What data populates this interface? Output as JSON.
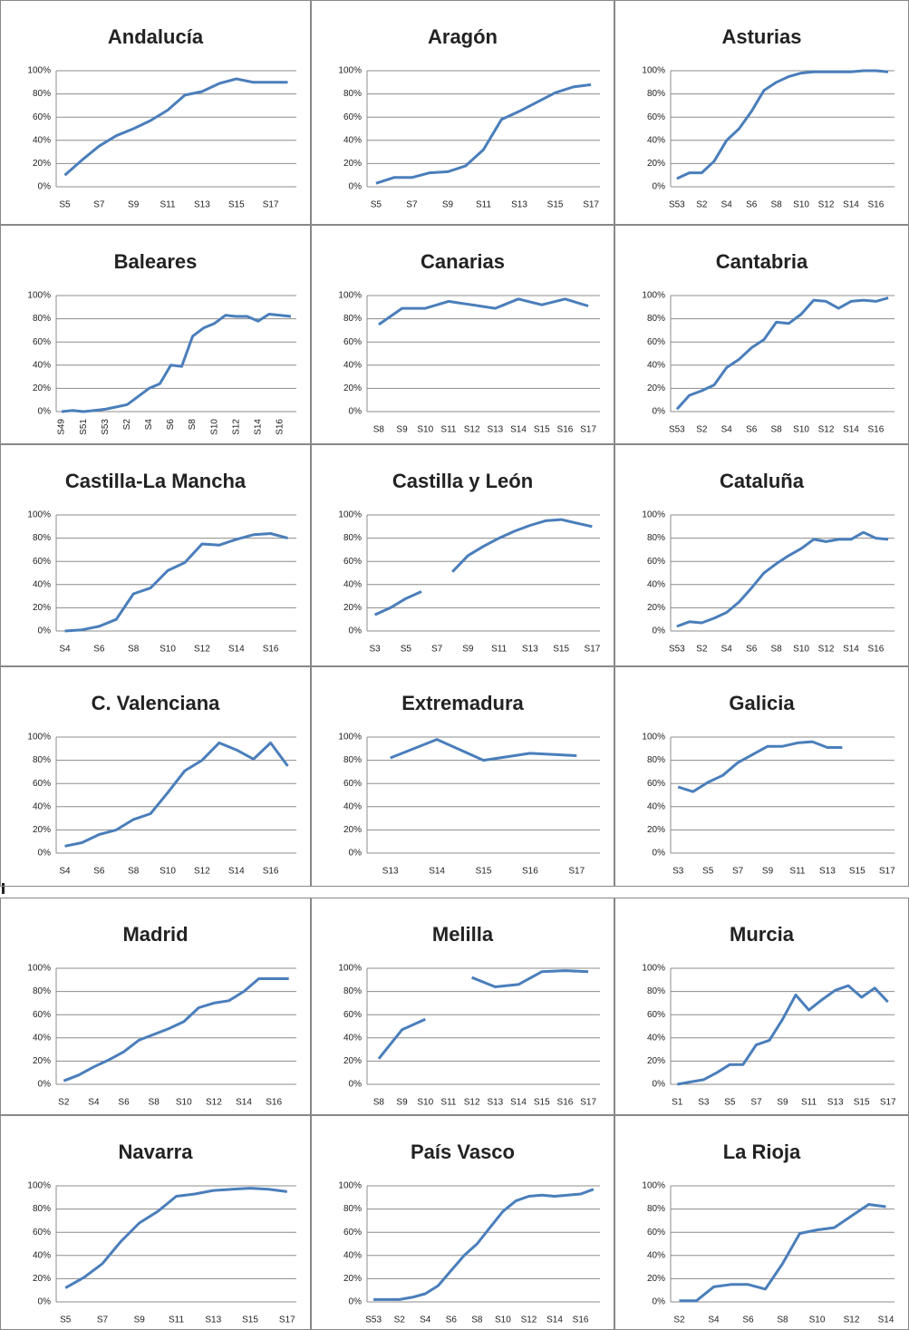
{
  "chart_data": [
    {
      "type": "line",
      "title": "Andalucía",
      "categories": [
        "S5",
        null,
        "S7",
        null,
        "S9",
        null,
        "S11",
        null,
        "S13",
        null,
        "S15",
        null,
        "S17",
        null
      ],
      "values": [
        10,
        23,
        35,
        44,
        50,
        57,
        66,
        79,
        82,
        89,
        93,
        90,
        90,
        90
      ],
      "color": "#4a7ebb",
      "ylim": [
        0,
        100
      ],
      "yticks": [
        {
          "value": 0,
          "label": "0%"
        },
        {
          "value": 20,
          "label": "20%"
        },
        {
          "value": 40,
          "label": "40%"
        },
        {
          "value": 60,
          "label": "60%"
        },
        {
          "value": 80,
          "label": "80%"
        },
        {
          "value": 100,
          "label": "100%"
        }
      ],
      "grid": true
    },
    {
      "type": "line",
      "title": "Aragón",
      "categories": [
        "S5",
        null,
        "S7",
        null,
        "S9",
        null,
        "S11",
        null,
        "S13",
        null,
        "S15",
        null,
        "S17"
      ],
      "values": [
        3,
        8,
        8,
        12,
        13,
        18,
        32,
        58,
        65,
        73,
        81,
        86,
        88
      ],
      "color": "#4a7ebb",
      "ylim": [
        0,
        100
      ],
      "yticks": [
        {
          "value": 0,
          "label": "0%"
        },
        {
          "value": 20,
          "label": "20%"
        },
        {
          "value": 40,
          "label": "40%"
        },
        {
          "value": 60,
          "label": "60%"
        },
        {
          "value": 80,
          "label": "80%"
        },
        {
          "value": 100,
          "label": "100%"
        }
      ],
      "grid": true
    },
    {
      "type": "line",
      "title": "Asturias",
      "categories": [
        "S53",
        null,
        "S2",
        null,
        "S4",
        null,
        "S6",
        null,
        "S8",
        null,
        "S10",
        null,
        "S12",
        null,
        "S14",
        null,
        "S16",
        null
      ],
      "values": [
        7,
        12,
        12,
        22,
        40,
        50,
        65,
        83,
        90,
        95,
        98,
        99,
        99,
        99,
        99,
        100,
        100,
        99
      ],
      "color": "#4a7ebb",
      "ylim": [
        0,
        100
      ],
      "yticks": [
        {
          "value": 0,
          "label": "0%"
        },
        {
          "value": 20,
          "label": "20%"
        },
        {
          "value": 40,
          "label": "40%"
        },
        {
          "value": 60,
          "label": "60%"
        },
        {
          "value": 80,
          "label": "80%"
        },
        {
          "value": 100,
          "label": "100%"
        }
      ],
      "grid": true
    },
    {
      "type": "line",
      "title": "Baleares",
      "categories": [
        "S49",
        null,
        "S51",
        null,
        "S53",
        null,
        "S2",
        null,
        "S4",
        null,
        "S6",
        null,
        "S8",
        null,
        "S10",
        null,
        "S12",
        null,
        "S14",
        null,
        "S16",
        null
      ],
      "values": [
        0,
        1,
        0,
        1,
        2,
        4,
        6,
        13,
        20,
        24,
        40,
        39,
        65,
        72,
        76,
        83,
        82,
        82,
        78,
        84,
        83,
        82
      ],
      "color": "#4a7ebb",
      "ylim": [
        0,
        100
      ],
      "yticks": [
        {
          "value": 0,
          "label": "0%"
        },
        {
          "value": 20,
          "label": "20%"
        },
        {
          "value": 40,
          "label": "40%"
        },
        {
          "value": 60,
          "label": "60%"
        },
        {
          "value": 80,
          "label": "80%"
        },
        {
          "value": 100,
          "label": "100%"
        }
      ],
      "grid": true,
      "xlabel_rotation": -90
    },
    {
      "type": "line",
      "title": "Canarias",
      "categories": [
        "S8",
        "S9",
        "S10",
        "S11",
        "S12",
        "S13",
        "S14",
        "S15",
        "S16",
        "S17"
      ],
      "values": [
        75,
        89,
        89,
        95,
        92,
        89,
        97,
        92,
        97,
        91
      ],
      "color": "#4a7ebb",
      "ylim": [
        0,
        100
      ],
      "yticks": [
        {
          "value": 0,
          "label": "0%"
        },
        {
          "value": 20,
          "label": "20%"
        },
        {
          "value": 40,
          "label": "40%"
        },
        {
          "value": 60,
          "label": "60%"
        },
        {
          "value": 80,
          "label": "80%"
        },
        {
          "value": 100,
          "label": "100%"
        }
      ],
      "grid": true
    },
    {
      "type": "line",
      "title": "Cantabria",
      "categories": [
        "S53",
        null,
        "S2",
        null,
        "S4",
        null,
        "S6",
        null,
        "S8",
        null,
        "S10",
        null,
        "S12",
        null,
        "S14",
        null,
        "S16",
        null
      ],
      "values": [
        2,
        14,
        18,
        23,
        38,
        45,
        55,
        62,
        77,
        76,
        84,
        96,
        95,
        89,
        95,
        96,
        95,
        98
      ],
      "color": "#4a7ebb",
      "ylim": [
        0,
        100
      ],
      "yticks": [
        {
          "value": 0,
          "label": "0%"
        },
        {
          "value": 20,
          "label": "20%"
        },
        {
          "value": 40,
          "label": "40%"
        },
        {
          "value": 60,
          "label": "60%"
        },
        {
          "value": 80,
          "label": "80%"
        },
        {
          "value": 100,
          "label": "100%"
        }
      ],
      "grid": true
    },
    {
      "type": "line",
      "title": "Castilla-La Mancha",
      "categories": [
        "S4",
        null,
        "S6",
        null,
        "S8",
        null,
        "S10",
        null,
        "S12",
        null,
        "S14",
        null,
        "S16",
        null
      ],
      "values": [
        0,
        1,
        4,
        10,
        32,
        37,
        52,
        59,
        75,
        74,
        79,
        83,
        84,
        80
      ],
      "color": "#4a7ebb",
      "ylim": [
        0,
        100
      ],
      "yticks": [
        {
          "value": 0,
          "label": "0%"
        },
        {
          "value": 20,
          "label": "20%"
        },
        {
          "value": 40,
          "label": "40%"
        },
        {
          "value": 60,
          "label": "60%"
        },
        {
          "value": 80,
          "label": "80%"
        },
        {
          "value": 100,
          "label": "100%"
        }
      ],
      "grid": true
    },
    {
      "type": "line",
      "title": "Castilla y León",
      "categories": [
        "S3",
        null,
        "S5",
        null,
        "S7",
        null,
        "S9",
        null,
        "S11",
        null,
        "S13",
        null,
        "S15",
        null,
        "S17"
      ],
      "values": [
        14,
        20,
        28,
        34,
        null,
        51,
        65,
        73,
        80,
        86,
        91,
        95,
        96,
        93,
        90
      ],
      "color": "#4a7ebb",
      "ylim": [
        0,
        100
      ],
      "yticks": [
        {
          "value": 0,
          "label": "0%"
        },
        {
          "value": 20,
          "label": "20%"
        },
        {
          "value": 40,
          "label": "40%"
        },
        {
          "value": 60,
          "label": "60%"
        },
        {
          "value": 80,
          "label": "80%"
        },
        {
          "value": 100,
          "label": "100%"
        }
      ],
      "grid": true
    },
    {
      "type": "line",
      "title": "Cataluña",
      "categories": [
        "S53",
        null,
        "S2",
        null,
        "S4",
        null,
        "S6",
        null,
        "S8",
        null,
        "S10",
        null,
        "S12",
        null,
        "S14",
        null,
        "S16",
        null
      ],
      "values": [
        4,
        8,
        7,
        11,
        16,
        25,
        37,
        50,
        58,
        65,
        71,
        79,
        77,
        79,
        79,
        85,
        80,
        79
      ],
      "color": "#4a7ebb",
      "ylim": [
        0,
        100
      ],
      "yticks": [
        {
          "value": 0,
          "label": "0%"
        },
        {
          "value": 20,
          "label": "20%"
        },
        {
          "value": 40,
          "label": "40%"
        },
        {
          "value": 60,
          "label": "60%"
        },
        {
          "value": 80,
          "label": "80%"
        },
        {
          "value": 100,
          "label": "100%"
        }
      ],
      "grid": true
    },
    {
      "type": "line",
      "title": "C. Valenciana",
      "categories": [
        "S4",
        null,
        "S6",
        null,
        "S8",
        null,
        "S10",
        null,
        "S12",
        null,
        "S14",
        null,
        "S16",
        null
      ],
      "values": [
        6,
        9,
        16,
        20,
        29,
        34,
        52,
        71,
        80,
        95,
        89,
        81,
        95,
        75
      ],
      "color": "#4a7ebb",
      "ylim": [
        0,
        100
      ],
      "yticks": [
        {
          "value": 0,
          "label": "0%"
        },
        {
          "value": 20,
          "label": "20%"
        },
        {
          "value": 40,
          "label": "40%"
        },
        {
          "value": 60,
          "label": "60%"
        },
        {
          "value": 80,
          "label": "80%"
        },
        {
          "value": 100,
          "label": "100%"
        }
      ],
      "grid": true
    },
    {
      "type": "line",
      "title": "Extremadura",
      "categories": [
        "S13",
        "S14",
        "S15",
        "S16",
        "S17"
      ],
      "values": [
        82,
        98,
        80,
        86,
        84
      ],
      "color": "#4a7ebb",
      "ylim": [
        0,
        100
      ],
      "yticks": [
        {
          "value": 0,
          "label": "0%"
        },
        {
          "value": 20,
          "label": "20%"
        },
        {
          "value": 40,
          "label": "40%"
        },
        {
          "value": 60,
          "label": "60%"
        },
        {
          "value": 80,
          "label": "80%"
        },
        {
          "value": 100,
          "label": "100%"
        }
      ],
      "grid": true
    },
    {
      "type": "line",
      "title": "Galicia",
      "categories": [
        "S3",
        null,
        "S5",
        null,
        "S7",
        null,
        "S9",
        null,
        "S11",
        null,
        "S13",
        null,
        "S15",
        null,
        "S17"
      ],
      "values": [
        57,
        53,
        61,
        67,
        78,
        85,
        92,
        92,
        95,
        96,
        91,
        91,
        null,
        null,
        null
      ],
      "color": "#4a7ebb",
      "ylim": [
        0,
        100
      ],
      "yticks": [
        {
          "value": 0,
          "label": "0%"
        },
        {
          "value": 20,
          "label": "20%"
        },
        {
          "value": 40,
          "label": "40%"
        },
        {
          "value": 60,
          "label": "60%"
        },
        {
          "value": 80,
          "label": "80%"
        },
        {
          "value": 100,
          "label": "100%"
        }
      ],
      "grid": true
    },
    {
      "type": "line",
      "title": "Madrid",
      "categories": [
        "S2",
        null,
        "S4",
        null,
        "S6",
        null,
        "S8",
        null,
        "S10",
        null,
        "S12",
        null,
        "S14",
        null,
        "S16",
        null
      ],
      "values": [
        3,
        8,
        15,
        21,
        28,
        38,
        43,
        48,
        54,
        66,
        70,
        72,
        80,
        91,
        91,
        91
      ],
      "color": "#4a7ebb",
      "ylim": [
        0,
        100
      ],
      "yticks": [
        {
          "value": 0,
          "label": "0%"
        },
        {
          "value": 20,
          "label": "20%"
        },
        {
          "value": 40,
          "label": "40%"
        },
        {
          "value": 60,
          "label": "60%"
        },
        {
          "value": 80,
          "label": "80%"
        },
        {
          "value": 100,
          "label": "100%"
        }
      ],
      "grid": true
    },
    {
      "type": "line",
      "title": "Melilla",
      "categories": [
        "S8",
        "S9",
        "S10",
        "S11",
        "S12",
        "S13",
        "S14",
        "S15",
        "S16",
        "S17"
      ],
      "values": [
        22,
        47,
        56,
        null,
        92,
        84,
        86,
        97,
        98,
        97
      ],
      "color": "#4a7ebb",
      "ylim": [
        0,
        100
      ],
      "yticks": [
        {
          "value": 0,
          "label": "0%"
        },
        {
          "value": 20,
          "label": "20%"
        },
        {
          "value": 40,
          "label": "40%"
        },
        {
          "value": 60,
          "label": "60%"
        },
        {
          "value": 80,
          "label": "80%"
        },
        {
          "value": 100,
          "label": "100%"
        }
      ],
      "grid": true
    },
    {
      "type": "line",
      "title": "Murcia",
      "categories": [
        "S1",
        null,
        "S3",
        null,
        "S5",
        null,
        "S7",
        null,
        "S9",
        null,
        "S11",
        null,
        "S13",
        null,
        "S15",
        null,
        "S17"
      ],
      "values": [
        0,
        2,
        4,
        10,
        17,
        17,
        34,
        38,
        56,
        77,
        64,
        73,
        81,
        85,
        75,
        83,
        71
      ],
      "color": "#4a7ebb",
      "ylim": [
        0,
        100
      ],
      "yticks": [
        {
          "value": 0,
          "label": "0%"
        },
        {
          "value": 20,
          "label": "20%"
        },
        {
          "value": 40,
          "label": "40%"
        },
        {
          "value": 60,
          "label": "60%"
        },
        {
          "value": 80,
          "label": "80%"
        },
        {
          "value": 100,
          "label": "100%"
        }
      ],
      "grid": true
    },
    {
      "type": "line",
      "title": "Navarra",
      "categories": [
        "S5",
        null,
        "S7",
        null,
        "S9",
        null,
        "S11",
        null,
        "S13",
        null,
        "S15",
        null,
        "S17"
      ],
      "values": [
        12,
        21,
        33,
        52,
        68,
        78,
        91,
        93,
        96,
        97,
        98,
        97,
        95
      ],
      "color": "#4a7ebb",
      "ylim": [
        0,
        100
      ],
      "yticks": [
        {
          "value": 0,
          "label": "0%"
        },
        {
          "value": 20,
          "label": "20%"
        },
        {
          "value": 40,
          "label": "40%"
        },
        {
          "value": 60,
          "label": "60%"
        },
        {
          "value": 80,
          "label": "80%"
        },
        {
          "value": 100,
          "label": "100%"
        }
      ],
      "grid": true
    },
    {
      "type": "line",
      "title": "País Vasco",
      "categories": [
        "S53",
        null,
        "S2",
        null,
        "S4",
        null,
        "S6",
        null,
        "S8",
        null,
        "S10",
        null,
        "S12",
        null,
        "S14",
        null,
        "S16",
        null
      ],
      "values": [
        2,
        2,
        2,
        4,
        7,
        14,
        27,
        40,
        50,
        64,
        78,
        87,
        91,
        92,
        91,
        92,
        93,
        97
      ],
      "color": "#4a7ebb",
      "ylim": [
        0,
        100
      ],
      "yticks": [
        {
          "value": 0,
          "label": "0%"
        },
        {
          "value": 20,
          "label": "20%"
        },
        {
          "value": 40,
          "label": "40%"
        },
        {
          "value": 60,
          "label": "60%"
        },
        {
          "value": 80,
          "label": "80%"
        },
        {
          "value": 100,
          "label": "100%"
        }
      ],
      "grid": true
    },
    {
      "type": "line",
      "title": "La Rioja",
      "categories": [
        "S2",
        null,
        "S4",
        null,
        "S6",
        null,
        "S8",
        null,
        "S10",
        null,
        "S12",
        null,
        "S14"
      ],
      "values": [
        1,
        1,
        13,
        15,
        15,
        11,
        33,
        59,
        62,
        64,
        74,
        84,
        82
      ],
      "color": "#4a7ebb",
      "ylim": [
        0,
        100
      ],
      "yticks": [
        {
          "value": 0,
          "label": "0%"
        },
        {
          "value": 20,
          "label": "20%"
        },
        {
          "value": 40,
          "label": "40%"
        },
        {
          "value": 60,
          "label": "60%"
        },
        {
          "value": 80,
          "label": "80%"
        },
        {
          "value": 100,
          "label": "100%"
        }
      ],
      "grid": true
    }
  ]
}
